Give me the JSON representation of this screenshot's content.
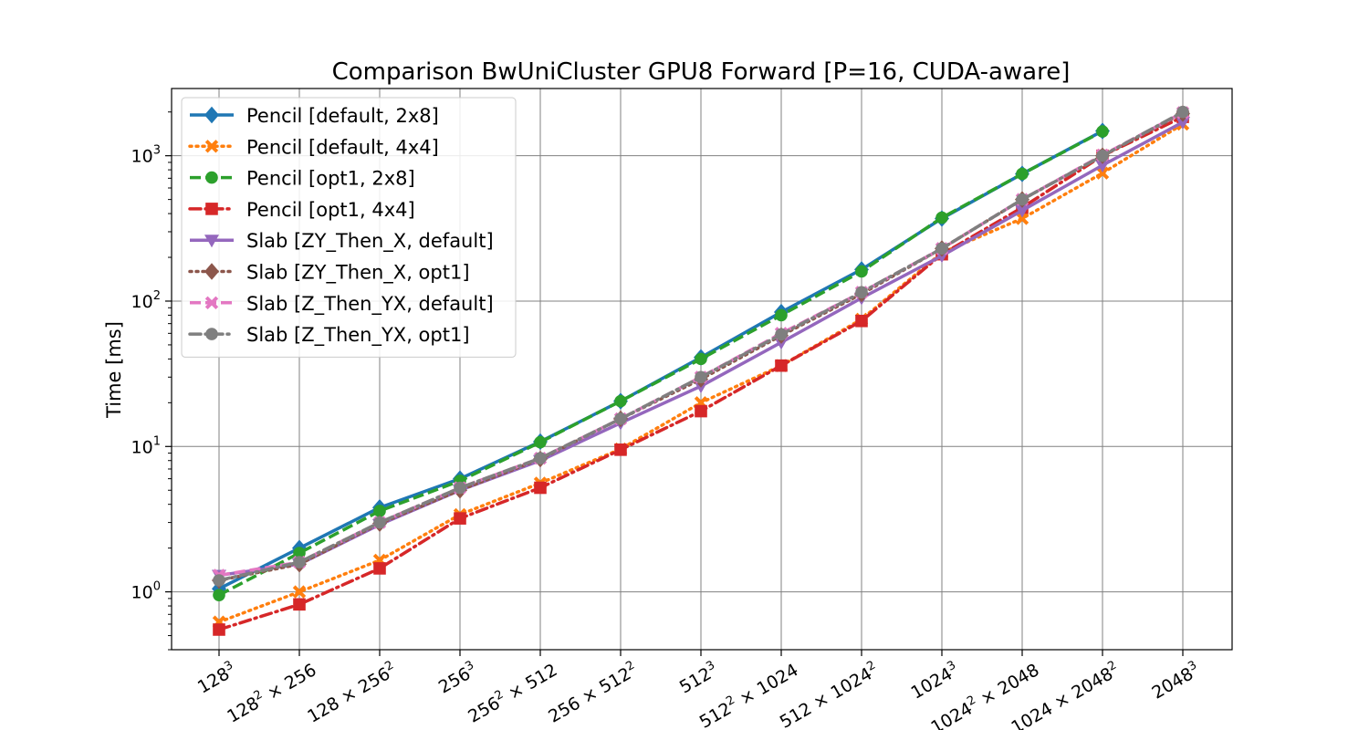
{
  "chart_data": {
    "type": "line",
    "title": "Comparison BwUniCluster GPU8 Forward [P=16, CUDA-aware]",
    "xlabel": "",
    "ylabel": "Time [ms]",
    "yscale": "log",
    "ylim": [
      0.4,
      2900
    ],
    "grid": true,
    "legend_position": "top-left",
    "categories": [
      "128^3",
      "128^2 × 256",
      "128 × 256^2",
      "256^3",
      "256^2 × 512",
      "256 × 512^2",
      "512^3",
      "512^2 × 1024",
      "512 × 1024^2",
      "1024^3",
      "1024^2 × 2048",
      "1024 × 2048^2",
      "2048^3"
    ],
    "x_tick_labels": [
      [
        {
          "t": "128"
        },
        {
          "t": "3",
          "sup": true
        }
      ],
      [
        {
          "t": "128"
        },
        {
          "t": "2",
          "sup": true
        },
        {
          "t": " × 256"
        }
      ],
      [
        {
          "t": "128 × 256"
        },
        {
          "t": "2",
          "sup": true
        }
      ],
      [
        {
          "t": "256"
        },
        {
          "t": "3",
          "sup": true
        }
      ],
      [
        {
          "t": "256"
        },
        {
          "t": "2",
          "sup": true
        },
        {
          "t": " × 512"
        }
      ],
      [
        {
          "t": "256 × 512"
        },
        {
          "t": "2",
          "sup": true
        }
      ],
      [
        {
          "t": "512"
        },
        {
          "t": "3",
          "sup": true
        }
      ],
      [
        {
          "t": "512"
        },
        {
          "t": "2",
          "sup": true
        },
        {
          "t": " × 1024"
        }
      ],
      [
        {
          "t": "512 × 1024"
        },
        {
          "t": "2",
          "sup": true
        }
      ],
      [
        {
          "t": "1024"
        },
        {
          "t": "3",
          "sup": true
        }
      ],
      [
        {
          "t": "1024"
        },
        {
          "t": "2",
          "sup": true
        },
        {
          "t": " × 2048"
        }
      ],
      [
        {
          "t": "1024 × 2048"
        },
        {
          "t": "2",
          "sup": true
        }
      ],
      [
        {
          "t": "2048"
        },
        {
          "t": "3",
          "sup": true
        }
      ]
    ],
    "y_ticks": [
      {
        "value": 1,
        "base": "10",
        "exp": "0"
      },
      {
        "value": 10,
        "base": "10",
        "exp": "1"
      },
      {
        "value": 100,
        "base": "10",
        "exp": "2"
      },
      {
        "value": 1000,
        "base": "10",
        "exp": "3"
      }
    ],
    "series": [
      {
        "name": "Pencil [default, 2x8]",
        "color": "#1f77b4",
        "dash": "solid",
        "marker": "diamond",
        "values": [
          1.05,
          2.0,
          3.8,
          6.0,
          10.8,
          20.5,
          41,
          84,
          165,
          370,
          750,
          1480,
          null
        ]
      },
      {
        "name": "Pencil [default, 4x4]",
        "color": "#ff7f0e",
        "dash": "dotted",
        "marker": "x",
        "values": [
          0.62,
          1.0,
          1.65,
          3.4,
          5.6,
          9.6,
          20,
          36,
          75,
          215,
          370,
          760,
          1650
        ]
      },
      {
        "name": "Pencil [opt1, 2x8]",
        "color": "#2ca02c",
        "dash": "dashed",
        "marker": "circle",
        "values": [
          0.95,
          1.85,
          3.6,
          5.8,
          10.7,
          20.5,
          40,
          80,
          160,
          375,
          750,
          1470,
          null
        ]
      },
      {
        "name": "Pencil [opt1, 4x4]",
        "color": "#d62728",
        "dash": "dashdot",
        "marker": "square",
        "values": [
          0.55,
          0.82,
          1.45,
          3.2,
          5.2,
          9.5,
          17.5,
          36,
          73,
          210,
          440,
          1000,
          1850
        ]
      },
      {
        "name": "Slab [ZY_Then_X, default]",
        "color": "#9467bd",
        "dash": "solid",
        "marker": "triangle-down",
        "values": [
          1.3,
          1.55,
          2.9,
          5.0,
          8.0,
          14.5,
          26,
          52,
          105,
          205,
          420,
          860,
          1700
        ]
      },
      {
        "name": "Slab [ZY_Then_X, opt1]",
        "color": "#8c564b",
        "dash": "dotted",
        "marker": "diamond",
        "values": [
          1.2,
          1.55,
          2.95,
          5.0,
          8.2,
          15.5,
          29,
          58,
          112,
          230,
          500,
          1000,
          1950
        ]
      },
      {
        "name": "Slab [Z_Then_YX, default]",
        "color": "#e377c2",
        "dash": "dashed",
        "marker": "x",
        "values": [
          1.3,
          1.6,
          3.0,
          5.2,
          8.3,
          15.5,
          30,
          60,
          115,
          230,
          500,
          1010,
          1980
        ]
      },
      {
        "name": "Slab [Z_Then_YX, opt1]",
        "color": "#7f7f7f",
        "dash": "dashdot",
        "marker": "circle",
        "values": [
          1.2,
          1.6,
          3.0,
          5.2,
          8.3,
          15.5,
          30,
          59,
          115,
          230,
          500,
          1000,
          2000
        ]
      }
    ]
  }
}
